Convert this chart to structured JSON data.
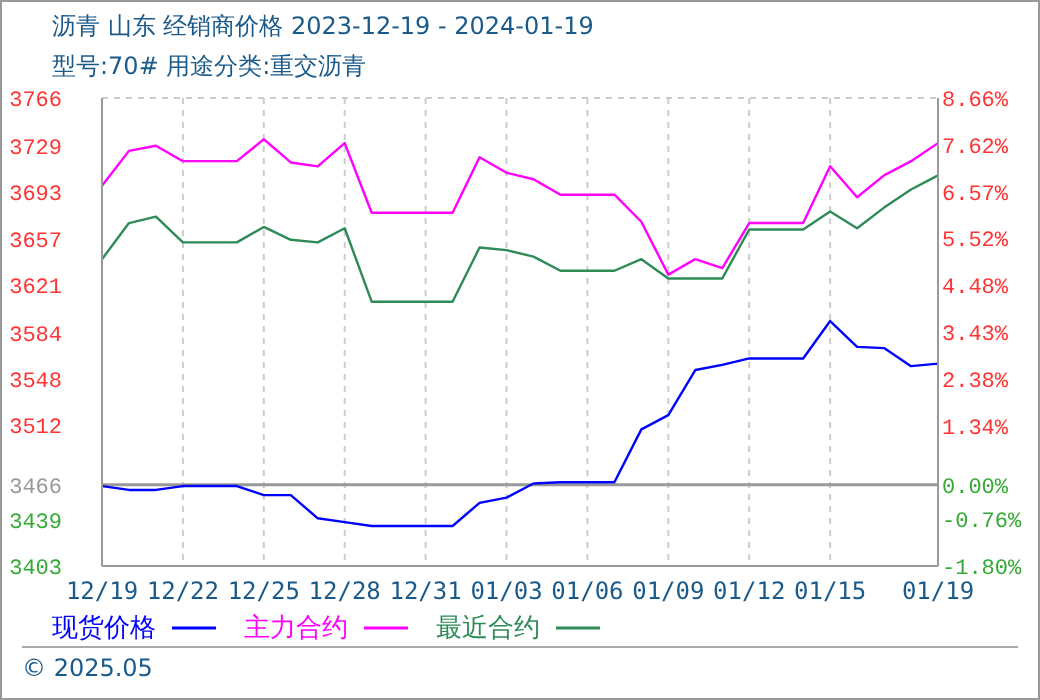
{
  "chart_data": {
    "type": "line",
    "title": "沥青  山东  经销商价格 2023-12-19 - 2024-01-19",
    "subtitle": "型号:70# 用途分类:重交沥青",
    "x": [
      "2023-12-19",
      "2023-12-20",
      "2023-12-21",
      "2023-12-22",
      "2023-12-23",
      "2023-12-24",
      "2023-12-25",
      "2023-12-26",
      "2023-12-27",
      "2023-12-28",
      "2023-12-29",
      "2023-12-30",
      "2023-12-31",
      "2024-01-01",
      "2024-01-02",
      "2024-01-03",
      "2024-01-04",
      "2024-01-05",
      "2024-01-06",
      "2024-01-07",
      "2024-01-08",
      "2024-01-09",
      "2024-01-10",
      "2024-01-11",
      "2024-01-12",
      "2024-01-13",
      "2024-01-14",
      "2024-01-15",
      "2024-01-16",
      "2024-01-17",
      "2024-01-18",
      "2024-01-19"
    ],
    "series": [
      {
        "name": "现货价格",
        "color": "#0000ff",
        "values": [
          3465,
          3462,
          3462,
          3465,
          3465,
          3465,
          3458,
          3458,
          3440,
          3437,
          3434,
          3434,
          3434,
          3434,
          3452,
          3456,
          3467,
          3468,
          3468,
          3468,
          3509,
          3520,
          3555,
          3559,
          3564,
          3564,
          3564,
          3593,
          3573,
          3572,
          3558,
          3560
        ]
      },
      {
        "name": "主力合约",
        "color": "#ff00ff",
        "values": [
          3698,
          3725,
          3729,
          3717,
          3717,
          3717,
          3734,
          3716,
          3713,
          3731,
          3677,
          3677,
          3677,
          3677,
          3720,
          3708,
          3703,
          3691,
          3691,
          3691,
          3670,
          3629,
          3641,
          3634,
          3669,
          3669,
          3669,
          3713,
          3689,
          3706,
          3717,
          3731
        ]
      },
      {
        "name": "最近合约",
        "color": "#2e8b57",
        "values": [
          3641,
          3669,
          3674,
          3654,
          3654,
          3654,
          3666,
          3656,
          3654,
          3665,
          3608,
          3608,
          3608,
          3608,
          3650,
          3648,
          3643,
          3632,
          3632,
          3632,
          3641,
          3626,
          3626,
          3626,
          3664,
          3664,
          3664,
          3678,
          3665,
          3681,
          3695,
          3706
        ]
      }
    ],
    "xlim": [
      "2023-12-19",
      "2024-01-19"
    ],
    "xticks": [
      {
        "value": "2023-12-19",
        "label": "12/19"
      },
      {
        "value": "2023-12-22",
        "label": "12/22"
      },
      {
        "value": "2023-12-25",
        "label": "12/25"
      },
      {
        "value": "2023-12-28",
        "label": "12/28"
      },
      {
        "value": "2023-12-31",
        "label": "12/31"
      },
      {
        "value": "2024-01-03",
        "label": "01/03"
      },
      {
        "value": "2024-01-06",
        "label": "01/06"
      },
      {
        "value": "2024-01-09",
        "label": "01/09"
      },
      {
        "value": "2024-01-12",
        "label": "01/12"
      },
      {
        "value": "2024-01-15",
        "label": "01/15"
      },
      {
        "value": "2024-01-19",
        "label": "01/19"
      }
    ],
    "ylim": [
      3403,
      3766
    ],
    "yticks": [
      3403,
      3439,
      3466,
      3512,
      3548,
      3584,
      3621,
      3657,
      3693,
      3729,
      3766
    ],
    "y2lim": [
      -1.8,
      8.66
    ],
    "y2ticks": [
      {
        "value": -1.8,
        "label": "-1.80%"
      },
      {
        "value": -0.76,
        "label": "-0.76%"
      },
      {
        "value": 0,
        "label": "0.00%"
      },
      {
        "value": 1.34,
        "label": "1.34%"
      },
      {
        "value": 2.38,
        "label": "2.38%"
      },
      {
        "value": 3.43,
        "label": "3.43%"
      },
      {
        "value": 4.48,
        "label": "4.48%"
      },
      {
        "value": 5.52,
        "label": "5.52%"
      },
      {
        "value": 6.57,
        "label": "6.57%"
      },
      {
        "value": 7.62,
        "label": "7.62%"
      },
      {
        "value": 8.66,
        "label": "8.66%"
      }
    ],
    "ref_lines": [
      {
        "axis": "y",
        "value": 3466,
        "color": "#999999"
      }
    ],
    "grid": true,
    "legend": "bottom left",
    "marker": "none",
    "line_style": "solid",
    "annotations": [
      "© 2025.05"
    ]
  }
}
